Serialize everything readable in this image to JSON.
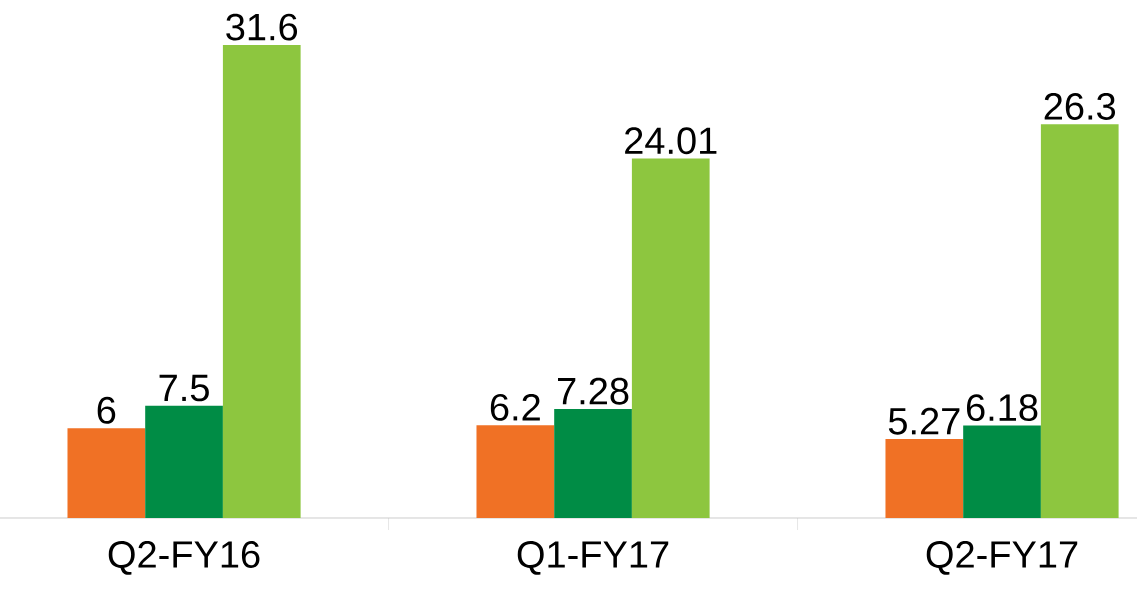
{
  "chart_data": {
    "type": "bar",
    "categories": [
      "Q2-FY16",
      "Q1-FY17",
      "Q2-FY17"
    ],
    "series": [
      {
        "color": "#f07125",
        "values": [
          6,
          6.2,
          5.27
        ]
      },
      {
        "color": "#008c45",
        "values": [
          7.5,
          7.28,
          6.18
        ]
      },
      {
        "color": "#8dc63f",
        "values": [
          31.6,
          24.01,
          26.3
        ]
      }
    ],
    "data_labels": true
  }
}
